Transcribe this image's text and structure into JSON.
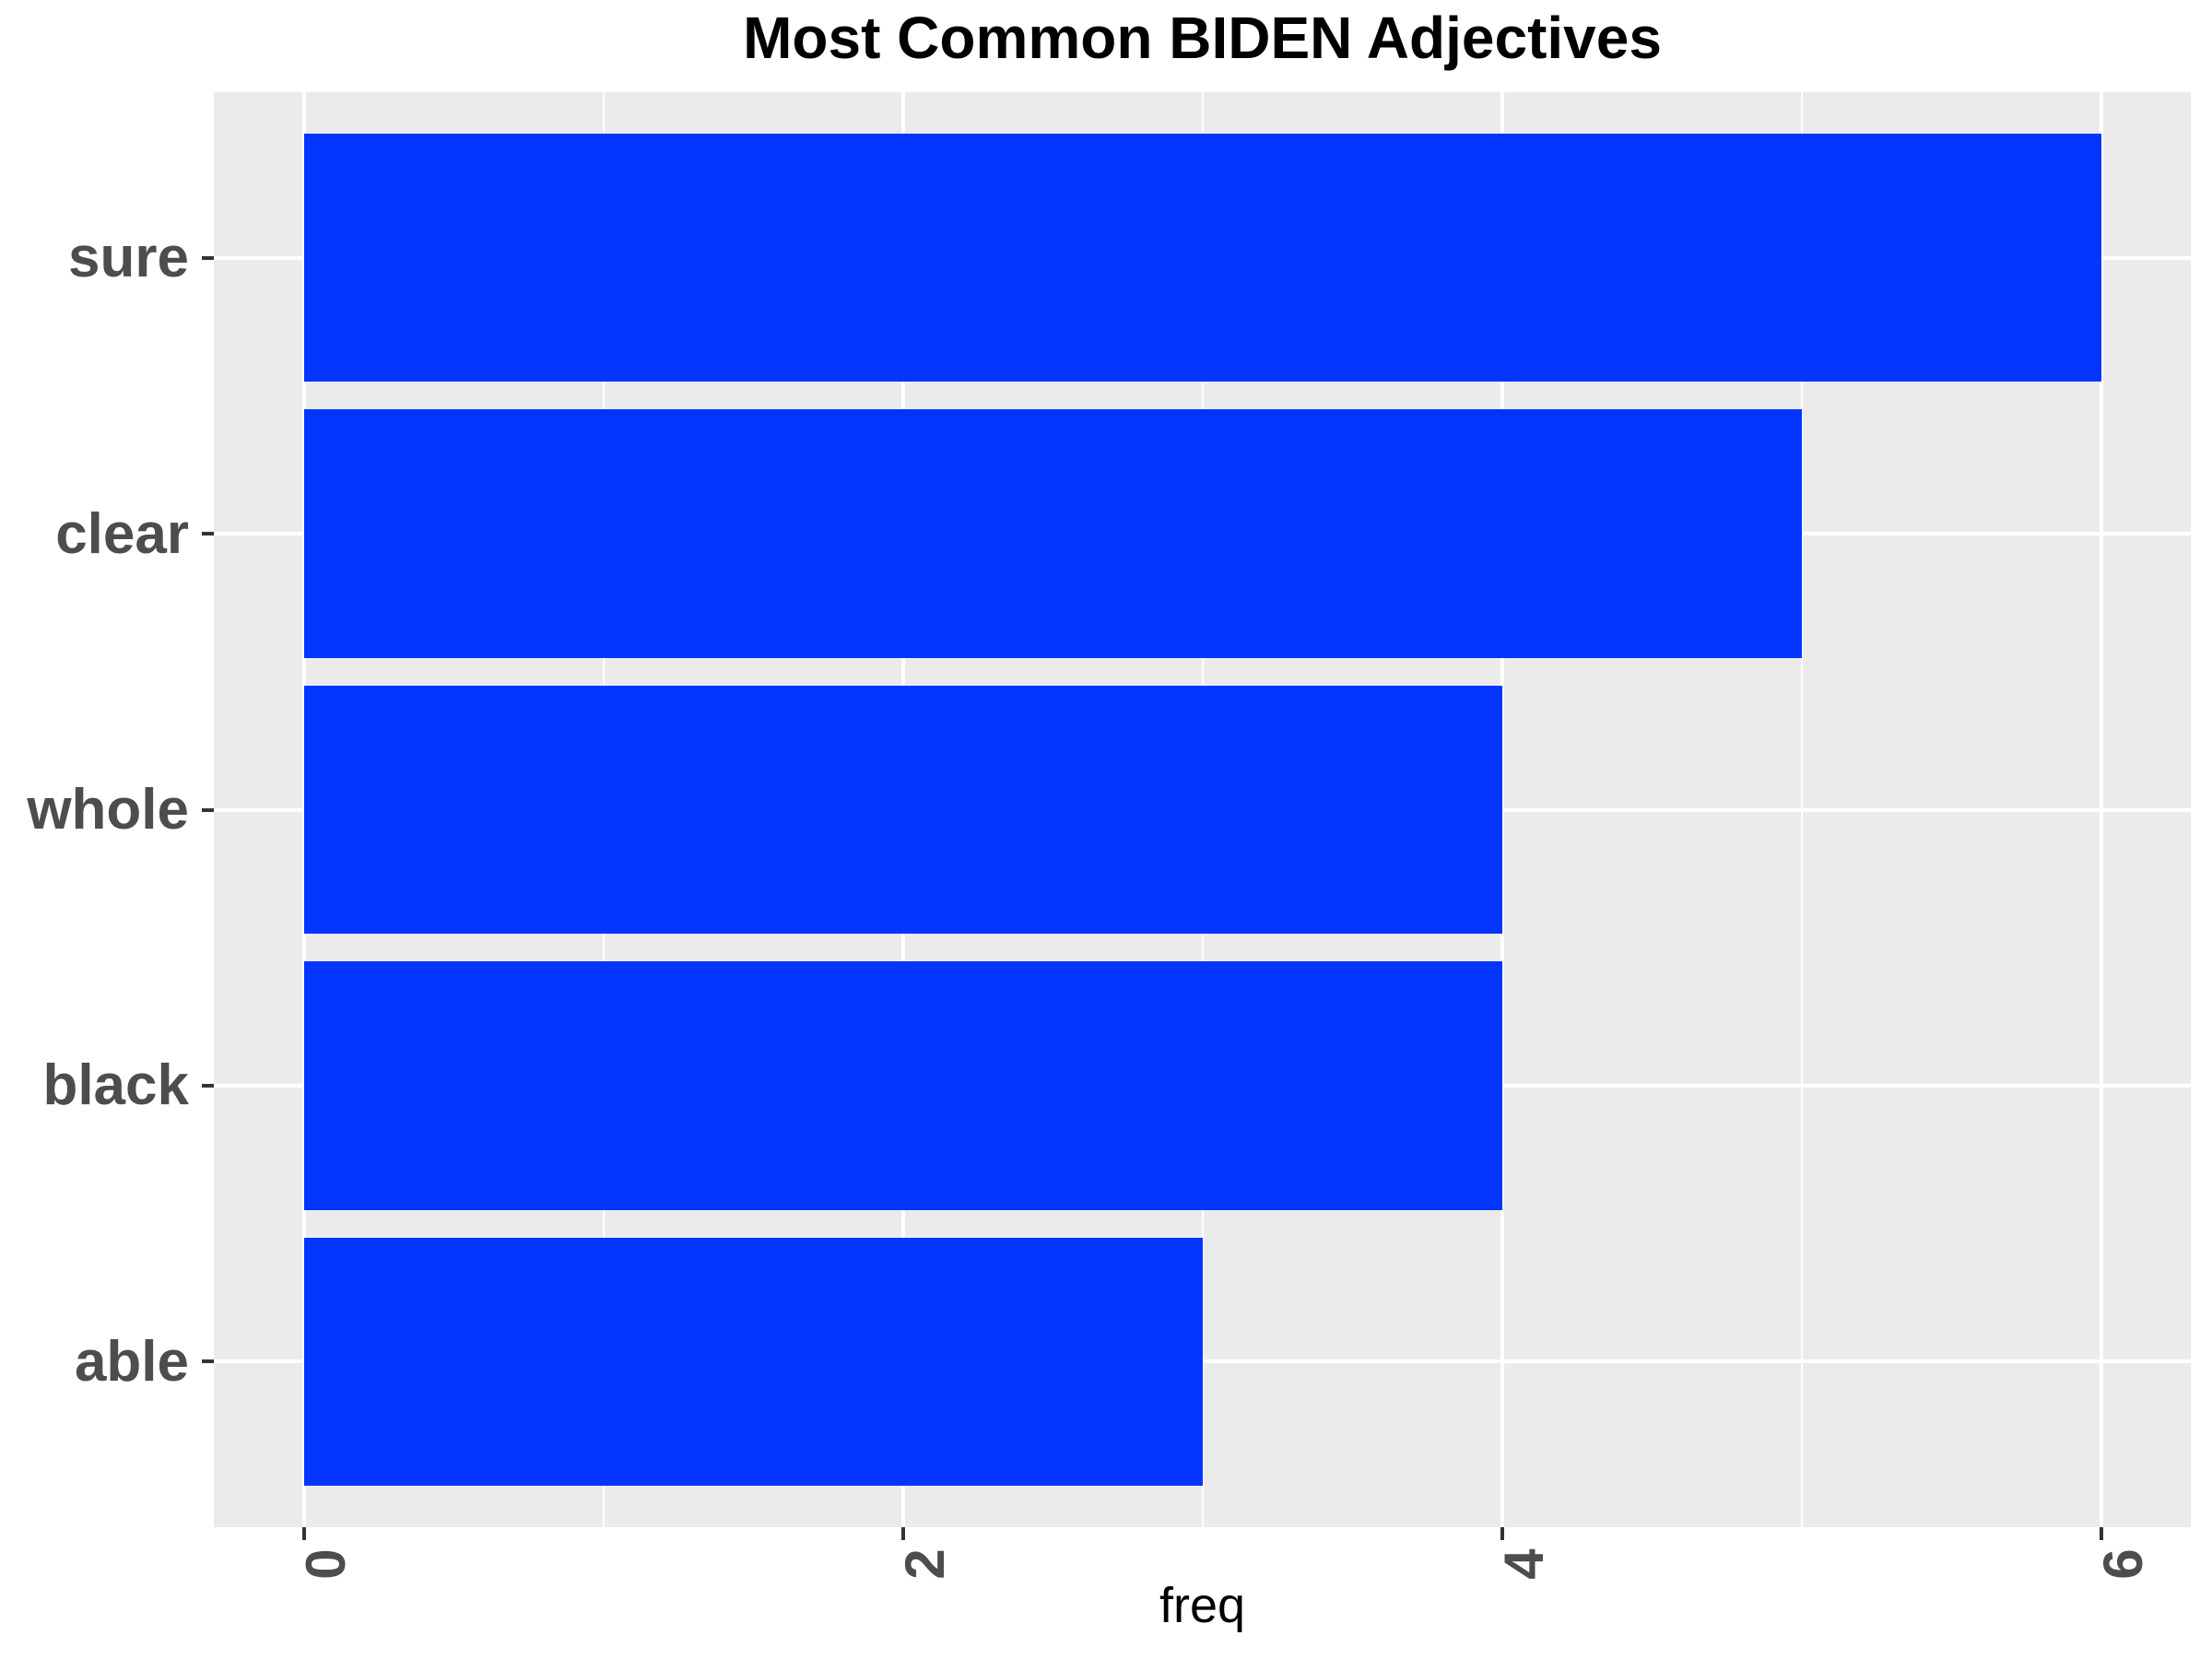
{
  "chart_data": {
    "type": "bar",
    "orientation": "horizontal",
    "title": "Most Common BIDEN Adjectives",
    "categories": [
      "sure",
      "clear",
      "whole",
      "black",
      "able"
    ],
    "values": [
      6,
      5,
      4,
      4,
      3
    ],
    "xlabel": "freq",
    "ylabel": "",
    "xlim": [
      -0.3,
      6.3
    ],
    "x_major_ticks": [
      0,
      2,
      4,
      6
    ],
    "x_tick_labels": [
      "0",
      "2",
      "4",
      "6"
    ],
    "x_minor_gridlines": [
      1,
      3,
      5
    ],
    "x_tick_label_rotation_deg": 90,
    "grid": "white major+minor vertical, white major horizontal",
    "legend": "none",
    "style": {
      "bar_fill": "#0435FF",
      "panel_background": "#EBEBEB",
      "gridline_color": "#FFFFFF",
      "axis_text_color": "#4D4D4D",
      "tick_mark_color": "#333333",
      "title_color": "#000000",
      "axis_title_color": "#000000",
      "figure_background": "#FFFFFF"
    }
  }
}
